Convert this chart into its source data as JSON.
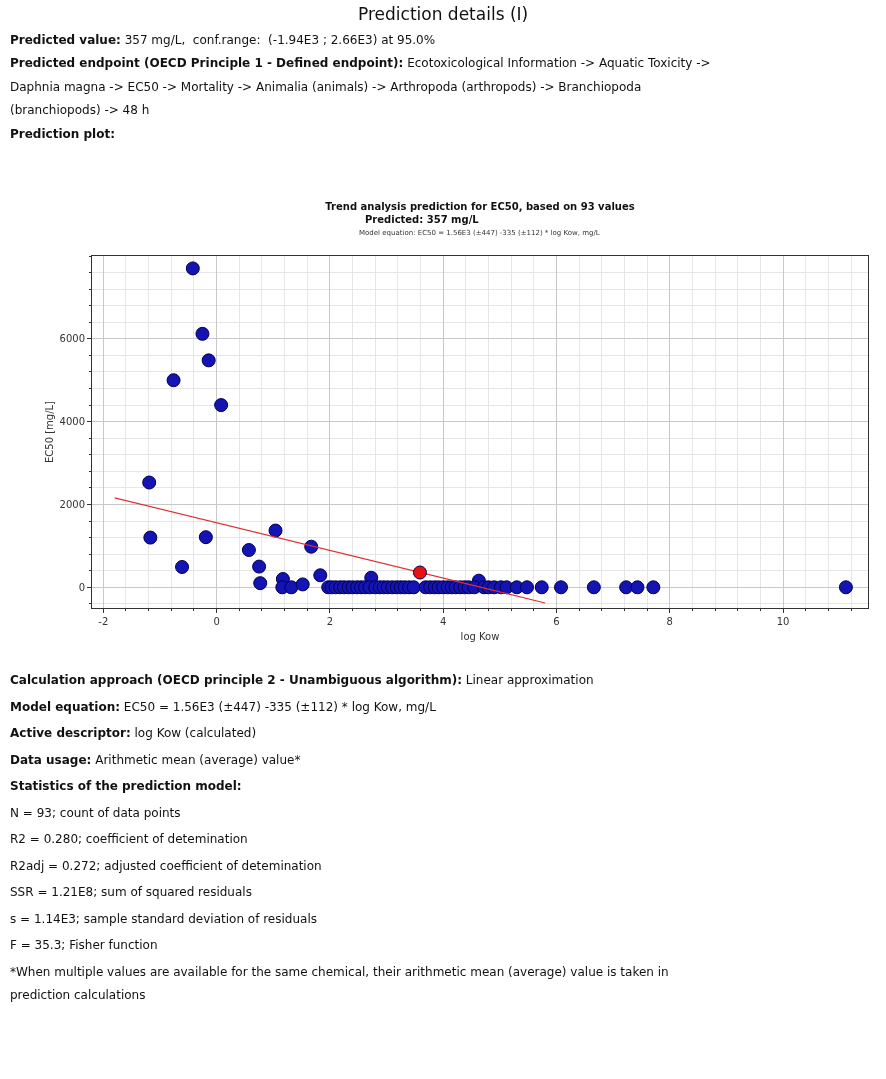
{
  "chart_data": {
    "type": "scatter",
    "title": "Trend analysis prediction for EC50, based on 93 values",
    "subtitle": "Predicted: 357 mg/L",
    "xlabel": "log Kow",
    "ylabel": "EC50 [mg/L]",
    "annotations": [
      "Prediction details (I)",
      "Predicted value: 357 mg/L,  conf.range:  (-1.94E3 ; 2.66E3) at 95.0%",
      "Predicted endpoint (OECD Principle 1 - Defined endpoint): Ecotoxicological Information -> Aquatic Toxicity -> Daphnia magna -> EC50 -> Mortality -> Animalia (animals) -> Arthropoda (arthropods) -> Branchiopoda (branchiopods) -> 48 h",
      "Prediction plot:",
      "Model equation: EC50 = 1.56E3 (±447) -335 (±112) * log Kow, mg/L",
      "Calculation approach (OECD principle 2 - Unambiguous algorithm): Linear approximation",
      "Model equation: EC50 = 1.56E3 (±447) -335 (±112) * log Kow, mg/L",
      "Active descriptor: log Kow (calculated)",
      "Data usage: Arithmetic mean (average) value*",
      "Statistics of the prediction model:",
      "N = 93; count of data points",
      "R2 = 0.280; coefficient of detemination",
      "R2adj = 0.272; adjusted coefficient of detemination",
      "SSR = 1.21E8; sum of squared residuals",
      "s = 1.14E3; sample standard deviation of residuals",
      "F = 35.3; Fisher function",
      "*When multiple values are available for the same chemical, their arithmetic mean (average) value is taken in prediction calculations"
    ],
    "xlim": [
      -2.2,
      11.5
    ],
    "ylim": [
      -500,
      8000
    ],
    "xticks": [
      -2,
      0,
      2,
      4,
      6,
      8,
      10
    ],
    "yticks": [
      0,
      2000,
      4000,
      6000
    ],
    "grid": true,
    "marker": "circle",
    "series": [
      {
        "color": "#1414b4",
        "x": [
          -0.42,
          -0.25,
          -0.14,
          -0.76,
          0.08,
          -1.19,
          -1.17,
          -0.19,
          -0.61,
          1.04,
          0.57,
          1.67,
          0.75,
          0.77,
          1.83,
          1.17,
          1.16,
          1.32,
          1.52,
          2.73,
          4.63,
          1.97,
          2.03,
          2.1,
          2.18,
          2.25,
          2.33,
          2.4,
          2.48,
          2.55,
          2.62,
          2.7,
          2.8,
          2.88,
          2.95,
          3.02,
          3.1,
          3.18,
          3.25,
          3.32,
          3.4,
          3.48,
          3.69,
          3.77,
          3.85,
          3.92,
          4.0,
          4.08,
          4.15,
          4.22,
          4.3,
          4.38,
          4.45,
          4.55,
          4.72,
          4.8,
          4.9,
          5.02,
          5.12,
          5.3,
          5.48,
          5.74,
          6.08,
          6.66,
          7.23,
          7.43,
          7.71,
          11.11
        ],
        "values": [
          7700,
          6120,
          5480,
          5000,
          4400,
          2530,
          1200,
          1210,
          490,
          1370,
          900,
          980,
          500,
          100,
          290,
          200,
          0,
          0,
          70,
          230,
          160,
          0,
          0,
          0,
          0,
          0,
          0,
          0,
          0,
          0,
          0,
          0,
          0,
          0,
          0,
          0,
          0,
          0,
          0,
          0,
          0,
          0,
          0,
          0,
          0,
          0,
          0,
          0,
          0,
          0,
          0,
          0,
          0,
          0,
          0,
          0,
          0,
          0,
          0,
          0,
          0,
          0,
          0,
          0,
          0,
          0,
          0,
          0
        ]
      },
      {
        "type": "line",
        "color": "#e03030",
        "x": [
          -1.8,
          5.8
        ],
        "values": [
          2160,
          -380
        ],
        "marker": "none"
      },
      {
        "color": "#e81010",
        "x": [
          3.59
        ],
        "values": [
          357
        ]
      }
    ]
  }
}
